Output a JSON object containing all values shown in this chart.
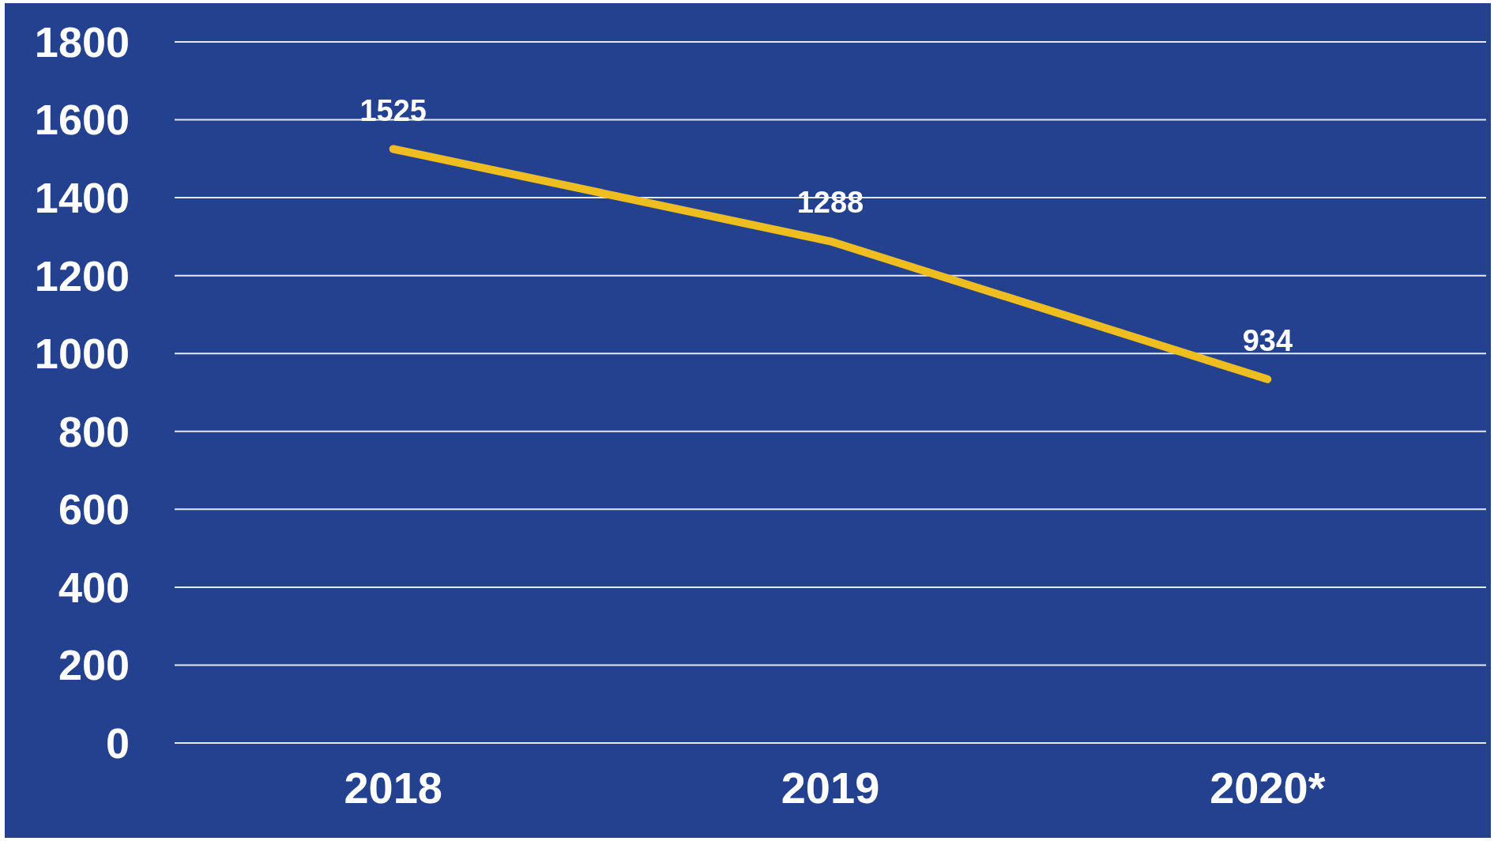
{
  "chart_data": {
    "type": "line",
    "categories": [
      "2018",
      "2019",
      "2020*"
    ],
    "series": [
      {
        "color": "#eebd1f",
        "values": [
          1525,
          1288,
          934
        ]
      }
    ],
    "ylim": [
      0,
      1800
    ],
    "yticks": [
      0,
      200,
      400,
      600,
      800,
      1000,
      1200,
      1400,
      1600,
      1800
    ],
    "grid": "y",
    "data_labels": true,
    "marker": "none",
    "line_style": "solid"
  }
}
